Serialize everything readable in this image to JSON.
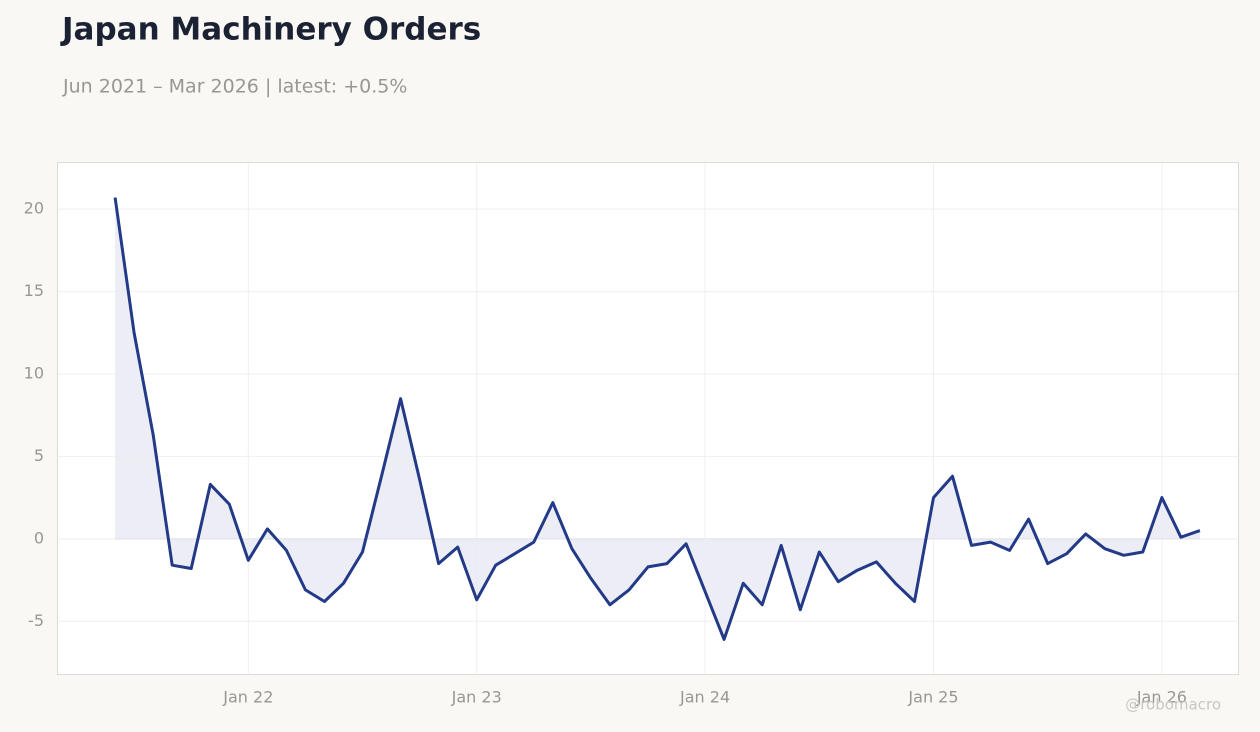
{
  "chart_data": {
    "type": "line",
    "title": "Japan Machinery Orders",
    "subtitle": "Jun 2021 – Mar 2026 | latest: +0.5%",
    "watermark": "@robomacro",
    "x": [
      "2021-06",
      "2021-07",
      "2021-08",
      "2021-09",
      "2021-10",
      "2021-11",
      "2021-12",
      "2022-01",
      "2022-02",
      "2022-03",
      "2022-04",
      "2022-05",
      "2022-06",
      "2022-07",
      "2022-08",
      "2022-09",
      "2022-10",
      "2022-11",
      "2022-12",
      "2023-01",
      "2023-02",
      "2023-03",
      "2023-04",
      "2023-05",
      "2023-06",
      "2023-07",
      "2023-08",
      "2023-09",
      "2023-10",
      "2023-11",
      "2023-12",
      "2024-01",
      "2024-02",
      "2024-03",
      "2024-04",
      "2024-05",
      "2024-06",
      "2024-07",
      "2024-08",
      "2024-09",
      "2024-10",
      "2024-11",
      "2024-12",
      "2025-01",
      "2025-02",
      "2025-03",
      "2025-04",
      "2025-05",
      "2025-06",
      "2025-07",
      "2025-08",
      "2025-09",
      "2025-10",
      "2025-11",
      "2025-12",
      "2026-01",
      "2026-02",
      "2026-03"
    ],
    "series": [
      {
        "color": "#223a87",
        "fill": "#e9eaf3",
        "values": [
          20.7,
          12.5,
          6.3,
          -1.6,
          -1.8,
          3.3,
          2.1,
          -1.3,
          0.6,
          -0.7,
          -3.1,
          -3.8,
          -2.7,
          -0.8,
          3.8,
          8.5,
          3.6,
          -1.5,
          -0.5,
          -3.7,
          -1.6,
          -0.9,
          -0.2,
          2.2,
          -0.6,
          -2.4,
          -4.0,
          -3.1,
          -1.7,
          -1.5,
          -0.3,
          -3.2,
          -6.1,
          -2.7,
          -4.0,
          -0.4,
          -4.3,
          -0.8,
          -2.6,
          -1.9,
          -1.4,
          -2.7,
          -3.8,
          2.5,
          3.8,
          -0.4,
          -0.2,
          -0.7,
          1.2,
          -1.5,
          -0.9,
          0.3,
          -0.6,
          -1.0,
          -0.8,
          2.5,
          0.1,
          0.5
        ]
      }
    ],
    "xlim": [
      "2021-03",
      "2026-05"
    ],
    "xticks": [
      {
        "value": "2022-01",
        "label": "Jan 22"
      },
      {
        "value": "2023-01",
        "label": "Jan 23"
      },
      {
        "value": "2024-01",
        "label": "Jan 24"
      },
      {
        "value": "2025-01",
        "label": "Jan 25"
      },
      {
        "value": "2026-01",
        "label": "Jan 26"
      }
    ],
    "ylim": [
      -8.2,
      22.8
    ],
    "yticks": [
      -5,
      0,
      5,
      10,
      15,
      20
    ],
    "grid": true
  }
}
